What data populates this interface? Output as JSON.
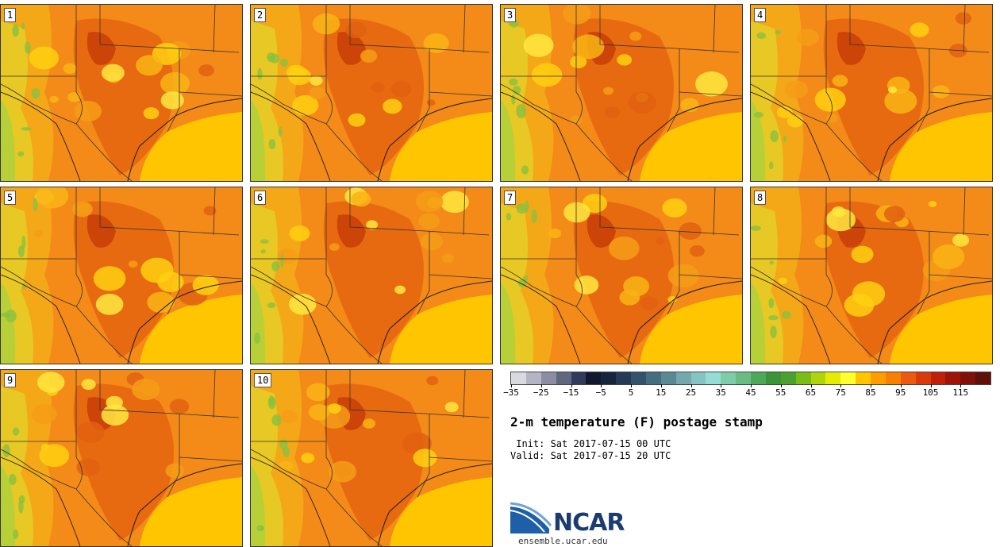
{
  "title": "2-m temperature (F) postage stamp",
  "init": " Init: Sat 2017-07-15 00 UTC",
  "valid": "Valid: Sat 2017-07-15 20 UTC",
  "members": [
    "1",
    "2",
    "3",
    "4",
    "5",
    "6",
    "7",
    "8",
    "9",
    "10"
  ],
  "colorbar": {
    "colors": [
      "#d9d9e0",
      "#b4b4c4",
      "#8c8ca4",
      "#606880",
      "#303a5a",
      "#101830",
      "#16243e",
      "#243a56",
      "#34526c",
      "#466c80",
      "#5a8894",
      "#74a8ac",
      "#86c4c4",
      "#94dcd4",
      "#80cca8",
      "#6abc84",
      "#4ea85a",
      "#3c9438",
      "#4ca030",
      "#7cbc18",
      "#b0d40c",
      "#e4ec04",
      "#ffff30",
      "#ffc600",
      "#ff9c00",
      "#f88000",
      "#ec5a10",
      "#d83a0c",
      "#c02008",
      "#a01408",
      "#801008",
      "#601008"
    ],
    "ticks": [
      "−35",
      "−25",
      "−15",
      "−5",
      "5",
      "15",
      "25",
      "35",
      "45",
      "55",
      "65",
      "75",
      "85",
      "95",
      "105",
      "115"
    ]
  },
  "logo": {
    "name": "NCAR",
    "url": "ensemble.ucar.edu"
  }
}
